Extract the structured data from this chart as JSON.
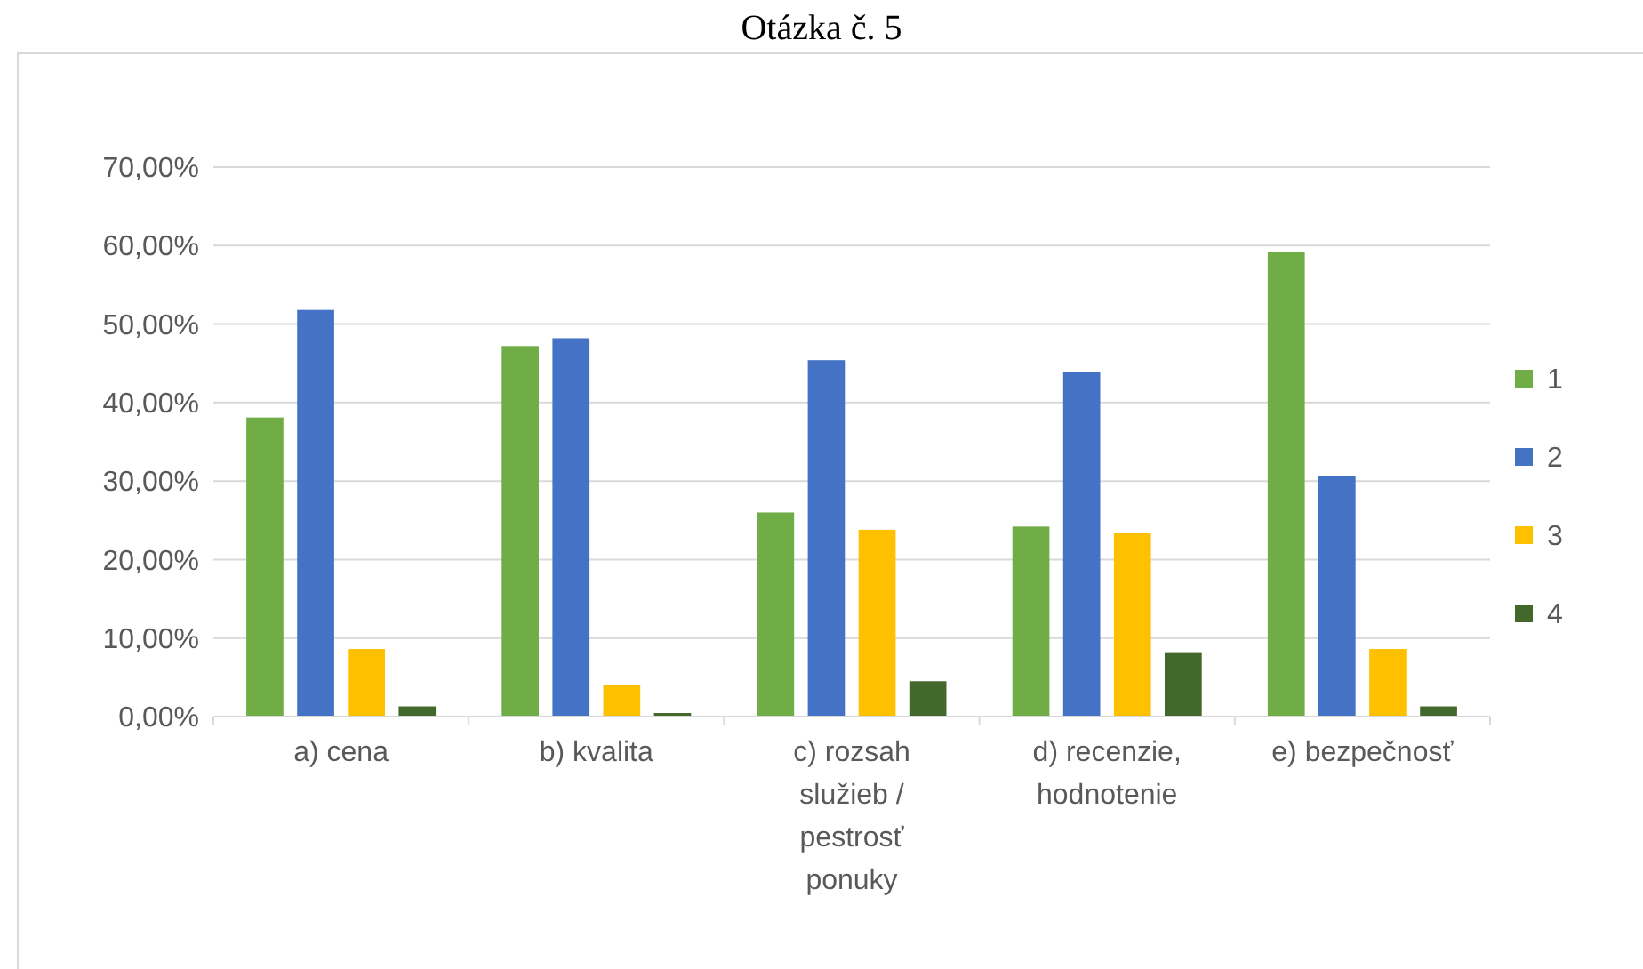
{
  "chart_data": {
    "type": "bar",
    "title": "Otázka č. 5",
    "categories": [
      "a) cena",
      "b) kvalita",
      "c) rozsah služieb / pestrosť ponuky",
      "d) recenzie, hodnotenie",
      "e) bezpečnosť"
    ],
    "series": [
      {
        "name": "1",
        "color": "#70ad47",
        "values": [
          38.1,
          47.2,
          26.0,
          24.2,
          59.2
        ]
      },
      {
        "name": "2",
        "color": "#4472c4",
        "values": [
          51.8,
          48.2,
          45.4,
          43.9,
          30.6
        ]
      },
      {
        "name": "3",
        "color": "#ffc000",
        "values": [
          8.6,
          4.0,
          23.8,
          23.4,
          8.6
        ]
      },
      {
        "name": "4",
        "color": "#43682b",
        "values": [
          1.3,
          0.45,
          4.5,
          8.2,
          1.3
        ]
      }
    ],
    "ylim": [
      0,
      70
    ],
    "yticks": [
      {
        "value": 0,
        "label": "0,00%"
      },
      {
        "value": 10,
        "label": "10,00%"
      },
      {
        "value": 20,
        "label": "20,00%"
      },
      {
        "value": 30,
        "label": "30,00%"
      },
      {
        "value": 40,
        "label": "40,00%"
      },
      {
        "value": 50,
        "label": "50,00%"
      },
      {
        "value": 60,
        "label": "60,00%"
      },
      {
        "value": 70,
        "label": "70,00%"
      }
    ],
    "grid": "y",
    "legend": "right"
  }
}
